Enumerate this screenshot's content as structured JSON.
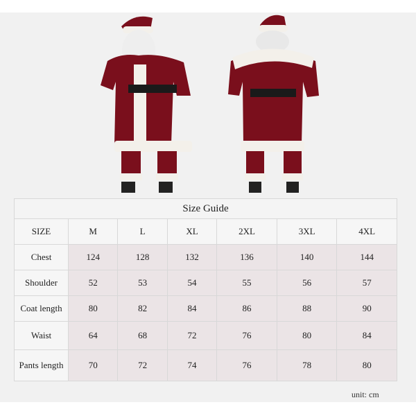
{
  "size_guide": {
    "title": "Size Guide",
    "headers": [
      "SIZE",
      "M",
      "L",
      "XL",
      "2XL",
      "3XL",
      "4XL"
    ],
    "rows": [
      {
        "label": "Chest",
        "values": [
          "124",
          "128",
          "132",
          "136",
          "140",
          "144"
        ]
      },
      {
        "label": "Shoulder",
        "values": [
          "52",
          "53",
          "54",
          "55",
          "56",
          "57"
        ]
      },
      {
        "label": "Coat length",
        "values": [
          "80",
          "82",
          "84",
          "86",
          "88",
          "90"
        ]
      },
      {
        "label": "Waist",
        "values": [
          "64",
          "68",
          "72",
          "76",
          "80",
          "84"
        ]
      },
      {
        "label": "Pants length",
        "values": [
          "70",
          "72",
          "74",
          "76",
          "78",
          "80"
        ]
      }
    ],
    "unit": "unit:  cm"
  },
  "colors": {
    "velvet": "#7a0f1c",
    "fur": "#f3f0ea",
    "belt": "#1a1a1a",
    "cell": "#ebe4e6"
  }
}
